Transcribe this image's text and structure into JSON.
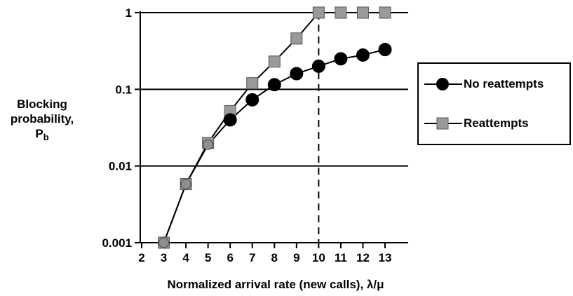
{
  "chart_data": {
    "type": "line",
    "y_scale": "log",
    "ylim": [
      0.001,
      1
    ],
    "xlim": [
      2,
      13
    ],
    "x_ticks": [
      2,
      3,
      4,
      5,
      6,
      7,
      8,
      9,
      10,
      11,
      12,
      13
    ],
    "y_ticks": [
      "0.001",
      "0.01",
      "0.1",
      "1"
    ],
    "y_tick_values": [
      0.001,
      0.01,
      0.1,
      1
    ],
    "xlabel": "Normalized arrival rate (new calls), λ/μ",
    "ylabel_lines": [
      "Blocking",
      "probability,"
    ],
    "ylabel_symbol": "P",
    "ylabel_subscript": "b",
    "grid": "horizontal",
    "reference_line": {
      "x": 10,
      "style": "dashed"
    },
    "series": [
      {
        "name": "No reattempts",
        "marker": "circle",
        "color": "#000000",
        "x": [
          3,
          4,
          5,
          6,
          7,
          8,
          9,
          10,
          11,
          12,
          13
        ],
        "y": [
          0.001,
          0.0058,
          0.019,
          0.04,
          0.073,
          0.115,
          0.16,
          0.2,
          0.25,
          0.28,
          0.33
        ]
      },
      {
        "name": "Reattempts",
        "marker": "square",
        "color": "#9a9a9a",
        "x": [
          3,
          4,
          5,
          6,
          7,
          8,
          9,
          10,
          11,
          12,
          13
        ],
        "y": [
          0.001,
          0.0058,
          0.02,
          0.052,
          0.12,
          0.23,
          0.46,
          1,
          1,
          1,
          1
        ]
      }
    ],
    "legend": "right"
  }
}
